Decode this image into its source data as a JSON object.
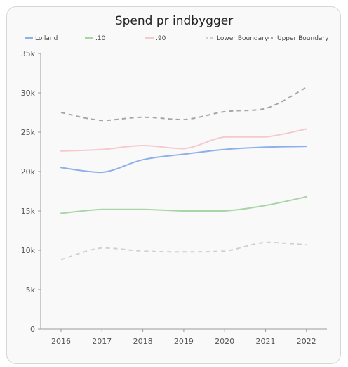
{
  "chart_data": {
    "type": "line",
    "title": "Spend pr indbygger",
    "xlabel": "",
    "ylabel": "",
    "x": [
      "2016",
      "2017",
      "2018",
      "2019",
      "2020",
      "2021",
      "2022"
    ],
    "ylim": [
      0,
      35000
    ],
    "yticks": [
      0,
      5000,
      10000,
      15000,
      20000,
      25000,
      30000,
      35000
    ],
    "ytick_labels": [
      "0",
      "5k",
      "10k",
      "15k",
      "20k",
      "25k",
      "30k",
      "35k"
    ],
    "grid": false,
    "legend_position": "top",
    "series": [
      {
        "name": "Lolland",
        "color": "#8eb0ea",
        "dash": false,
        "values": [
          20500,
          19900,
          21500,
          22200,
          22800,
          23100,
          23200
        ]
      },
      {
        "name": ".10",
        "color": "#a8d5a8",
        "dash": false,
        "values": [
          14700,
          15200,
          15200,
          15000,
          15000,
          15700,
          16800
        ]
      },
      {
        "name": ".90",
        "color": "#f6c9cf",
        "dash": false,
        "values": [
          22600,
          22800,
          23300,
          22900,
          24400,
          24400,
          25400
        ]
      },
      {
        "name": "Lower Boundary",
        "color": "#d0d0d0",
        "dash": true,
        "values": [
          8800,
          10300,
          9900,
          9800,
          9900,
          11000,
          10700
        ]
      },
      {
        "name": "Upper Boundary",
        "color": "#a6a6a6",
        "dash": true,
        "values": [
          27500,
          26500,
          26900,
          26600,
          27600,
          28000,
          30700
        ]
      }
    ]
  }
}
